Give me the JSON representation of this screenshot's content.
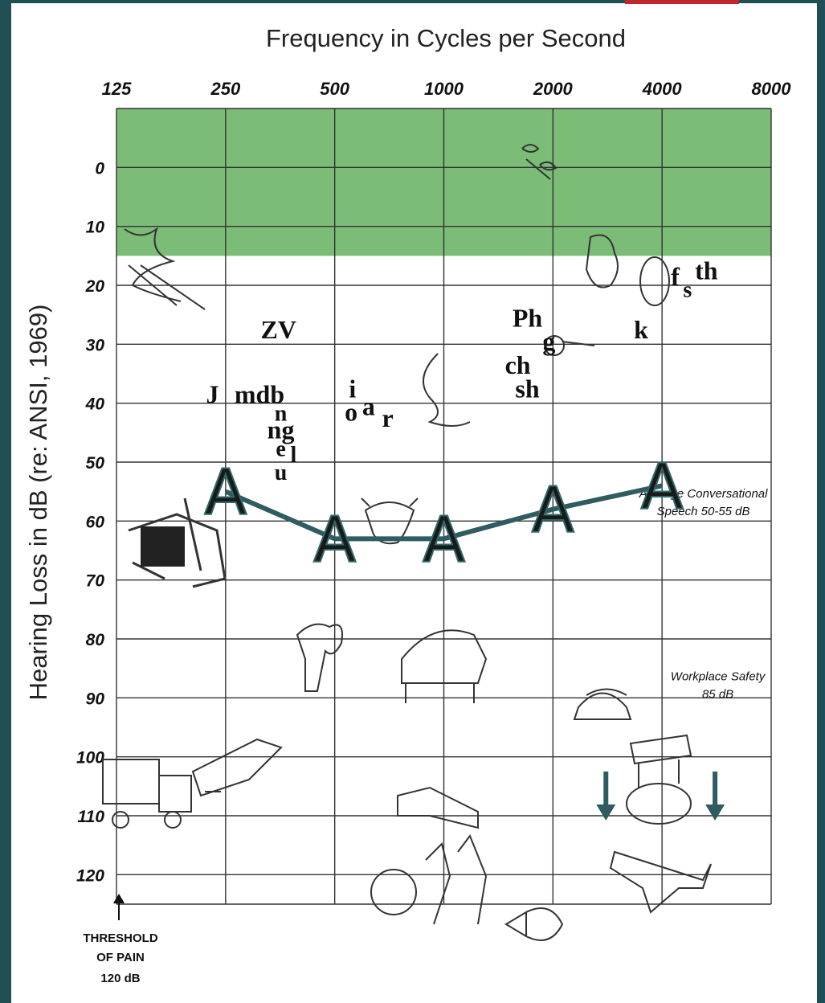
{
  "chart_data": {
    "type": "line",
    "title": "Frequency in Cycles per Second",
    "xlabel": "Frequency in Cycles per Second",
    "ylabel": "Hearing Loss in dB (re: ANSI, 1969)",
    "x_ticks": [
      "125",
      "250",
      "500",
      "1000",
      "2000",
      "4000",
      "8000"
    ],
    "y_ticks": [
      "0",
      "10",
      "20",
      "30",
      "40",
      "50",
      "60",
      "70",
      "80",
      "90",
      "100",
      "110",
      "120"
    ],
    "x_scale": "log2",
    "xlim": [
      125,
      8000
    ],
    "ylim": [
      -10,
      125
    ],
    "y_inverted": true,
    "grid": true,
    "series": [
      {
        "marker": "A",
        "color": "#2f5c60",
        "points": [
          {
            "x": 250,
            "y": 55
          },
          {
            "x": 500,
            "y": 63
          },
          {
            "x": 1000,
            "y": 63
          },
          {
            "x": 2000,
            "y": 58
          },
          {
            "x": 4000,
            "y": 54
          }
        ]
      }
    ],
    "shaded_region": {
      "x_from": 125,
      "x_to": 8000,
      "y_from": -10,
      "y_to": 15,
      "color": "#74b86f"
    },
    "speech_sounds": [
      {
        "text": "ZV",
        "x": 350,
        "y": 29
      },
      {
        "text": "J",
        "x": 230,
        "y": 40
      },
      {
        "text": "mdb",
        "x": 310,
        "y": 40
      },
      {
        "text": "n",
        "x": 355,
        "y": 43
      },
      {
        "text": "ng",
        "x": 355,
        "y": 46
      },
      {
        "text": "e",
        "x": 355,
        "y": 49
      },
      {
        "text": "l",
        "x": 385,
        "y": 50
      },
      {
        "text": "u",
        "x": 355,
        "y": 53
      },
      {
        "text": "i",
        "x": 560,
        "y": 39
      },
      {
        "text": "o",
        "x": 555,
        "y": 43
      },
      {
        "text": "a",
        "x": 620,
        "y": 42
      },
      {
        "text": "r",
        "x": 700,
        "y": 44
      },
      {
        "text": "Ph",
        "x": 1700,
        "y": 27
      },
      {
        "text": "g",
        "x": 1950,
        "y": 31
      },
      {
        "text": "ch",
        "x": 1600,
        "y": 35
      },
      {
        "text": "sh",
        "x": 1700,
        "y": 39
      },
      {
        "text": "k",
        "x": 3500,
        "y": 29
      },
      {
        "text": "f",
        "x": 4350,
        "y": 20
      },
      {
        "text": "s",
        "x": 4700,
        "y": 22
      },
      {
        "text": "th",
        "x": 5300,
        "y": 19
      }
    ],
    "annotations": [
      {
        "text": "Average Conversational",
        "x": 5200,
        "y": 56
      },
      {
        "text": "Speech 50-55 dB",
        "x": 5200,
        "y": 59
      },
      {
        "text": "Workplace Safety",
        "x": 5700,
        "y": 87
      },
      {
        "text": "85 dB",
        "x": 5700,
        "y": 90
      }
    ],
    "threshold_note": [
      "THRESHOLD",
      "OF PAIN",
      "120 dB"
    ],
    "down_arrows": [
      {
        "x": 2800,
        "y": 110
      },
      {
        "x": 5600,
        "y": 110
      }
    ]
  }
}
